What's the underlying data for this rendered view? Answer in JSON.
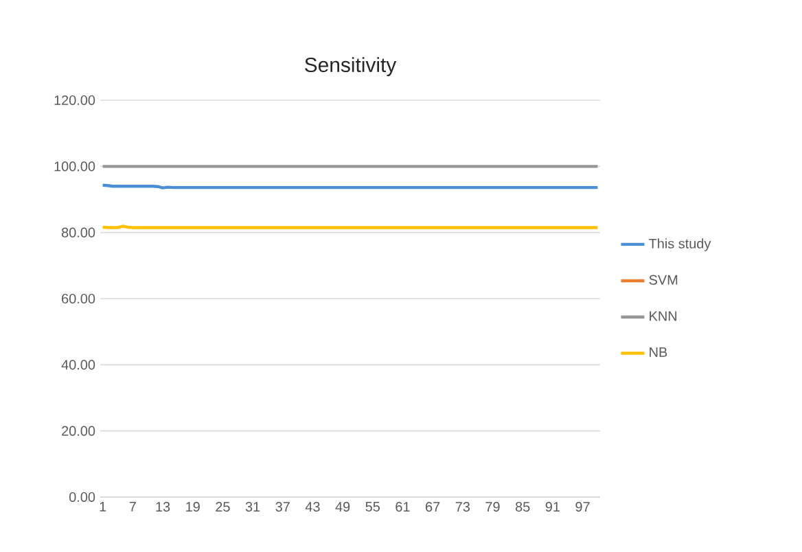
{
  "chart_data": {
    "type": "line",
    "title": "Sensitivity",
    "categories": [
      "1",
      null,
      null,
      null,
      null,
      null,
      "7",
      null,
      null,
      null,
      null,
      null,
      "13",
      null,
      null,
      null,
      null,
      null,
      "19",
      null,
      null,
      null,
      null,
      null,
      "25",
      null,
      null,
      null,
      null,
      null,
      "31",
      null,
      null,
      null,
      null,
      null,
      "37",
      null,
      null,
      null,
      null,
      null,
      "43",
      null,
      null,
      null,
      null,
      null,
      "49",
      null,
      null,
      null,
      null,
      null,
      "55",
      null,
      null,
      null,
      null,
      null,
      "61",
      null,
      null,
      null,
      null,
      null,
      "67",
      null,
      null,
      null,
      null,
      null,
      "73",
      null,
      null,
      null,
      null,
      null,
      "79",
      null,
      null,
      null,
      null,
      null,
      "85",
      null,
      null,
      null,
      null,
      null,
      "91",
      null,
      null,
      null,
      null,
      null,
      "97",
      null,
      null,
      null
    ],
    "series": [
      {
        "name": "This study",
        "color": "#4a8fd6",
        "values": [
          94.3,
          94.2,
          94.0,
          94.0,
          94.0,
          94.0,
          94.0,
          94.0,
          94.0,
          94.0,
          94.0,
          93.9,
          93.5,
          93.7,
          93.6,
          93.6,
          93.6,
          93.6,
          93.6,
          93.6,
          93.6,
          93.6,
          93.6,
          93.6,
          93.6,
          93.6,
          93.6,
          93.6,
          93.6,
          93.6,
          93.6,
          93.6,
          93.6,
          93.6,
          93.6,
          93.6,
          93.6,
          93.6,
          93.6,
          93.6,
          93.6,
          93.6,
          93.6,
          93.6,
          93.6,
          93.6,
          93.6,
          93.6,
          93.6,
          93.6,
          93.6,
          93.6,
          93.6,
          93.6,
          93.6,
          93.6,
          93.6,
          93.6,
          93.6,
          93.6,
          93.6,
          93.6,
          93.6,
          93.6,
          93.6,
          93.6,
          93.6,
          93.6,
          93.6,
          93.6,
          93.6,
          93.6,
          93.6,
          93.6,
          93.6,
          93.6,
          93.6,
          93.6,
          93.6,
          93.6,
          93.6,
          93.6,
          93.6,
          93.6,
          93.6,
          93.6,
          93.6,
          93.6,
          93.6,
          93.6,
          93.6,
          93.6,
          93.6,
          93.6,
          93.6,
          93.6,
          93.6,
          93.6,
          93.6,
          93.6
        ]
      },
      {
        "name": "SVM",
        "color": "#ed7d31",
        "values": [
          null,
          null,
          null,
          null,
          null,
          null,
          null,
          null,
          null,
          null,
          null,
          null,
          null,
          null,
          null,
          null,
          null,
          null,
          null,
          null,
          null,
          null,
          null,
          null,
          null,
          null,
          null,
          null,
          null,
          null,
          null,
          null,
          null,
          null,
          null,
          null,
          null,
          null,
          null,
          null,
          null,
          null,
          null,
          null,
          null,
          null,
          null,
          null,
          null,
          null,
          null,
          null,
          null,
          null,
          null,
          null,
          null,
          null,
          null,
          null,
          null,
          null,
          null,
          null,
          null,
          null,
          null,
          null,
          null,
          null,
          null,
          null,
          null,
          null,
          null,
          null,
          null,
          null,
          null,
          null,
          null,
          null,
          null,
          null,
          null,
          null,
          null,
          null,
          null,
          null,
          null,
          null,
          null,
          null,
          null,
          null,
          null,
          null,
          null,
          null
        ]
      },
      {
        "name": "KNN",
        "color": "#969696",
        "values": [
          100,
          100,
          100,
          100,
          100,
          100,
          100,
          100,
          100,
          100,
          100,
          100,
          100,
          100,
          100,
          100,
          100,
          100,
          100,
          100,
          100,
          100,
          100,
          100,
          100,
          100,
          100,
          100,
          100,
          100,
          100,
          100,
          100,
          100,
          100,
          100,
          100,
          100,
          100,
          100,
          100,
          100,
          100,
          100,
          100,
          100,
          100,
          100,
          100,
          100,
          100,
          100,
          100,
          100,
          100,
          100,
          100,
          100,
          100,
          100,
          100,
          100,
          100,
          100,
          100,
          100,
          100,
          100,
          100,
          100,
          100,
          100,
          100,
          100,
          100,
          100,
          100,
          100,
          100,
          100,
          100,
          100,
          100,
          100,
          100,
          100,
          100,
          100,
          100,
          100,
          100,
          100,
          100,
          100,
          100,
          100,
          100,
          100,
          100,
          100
        ]
      },
      {
        "name": "NB",
        "color": "#ffc000",
        "values": [
          81.6,
          81.5,
          81.5,
          81.5,
          81.9,
          81.6,
          81.5,
          81.5,
          81.5,
          81.5,
          81.5,
          81.5,
          81.5,
          81.5,
          81.5,
          81.5,
          81.5,
          81.5,
          81.5,
          81.5,
          81.5,
          81.5,
          81.5,
          81.5,
          81.5,
          81.5,
          81.5,
          81.5,
          81.5,
          81.5,
          81.5,
          81.5,
          81.5,
          81.5,
          81.5,
          81.5,
          81.5,
          81.5,
          81.5,
          81.5,
          81.5,
          81.5,
          81.5,
          81.5,
          81.5,
          81.5,
          81.5,
          81.5,
          81.5,
          81.5,
          81.5,
          81.5,
          81.5,
          81.5,
          81.5,
          81.5,
          81.5,
          81.5,
          81.5,
          81.5,
          81.5,
          81.5,
          81.5,
          81.5,
          81.5,
          81.5,
          81.5,
          81.5,
          81.5,
          81.5,
          81.5,
          81.5,
          81.5,
          81.5,
          81.5,
          81.5,
          81.5,
          81.5,
          81.5,
          81.5,
          81.5,
          81.5,
          81.5,
          81.5,
          81.5,
          81.5,
          81.5,
          81.5,
          81.5,
          81.5,
          81.5,
          81.5,
          81.5,
          81.5,
          81.5,
          81.5,
          81.5,
          81.5,
          81.5,
          81.5
        ]
      }
    ],
    "ylim": [
      0,
      120
    ],
    "yticks": [
      {
        "value": 0,
        "label": "0.00"
      },
      {
        "value": 20,
        "label": "20.00"
      },
      {
        "value": 40,
        "label": "40.00"
      },
      {
        "value": 60,
        "label": "60.00"
      },
      {
        "value": 80,
        "label": "80.00"
      },
      {
        "value": 100,
        "label": "100.00"
      },
      {
        "value": 120,
        "label": "120.00"
      }
    ],
    "grid": "y",
    "legend": "right",
    "marker": "none",
    "line_style": "solid"
  }
}
